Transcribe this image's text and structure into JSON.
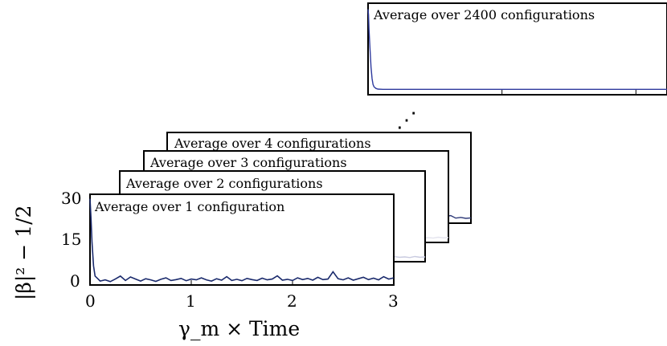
{
  "chart_data": {
    "type": "line",
    "xlabel": "γ_m × Time",
    "ylabel": "|β|² − 1/2",
    "xlim": [
      0,
      3
    ],
    "ylim": [
      0,
      30
    ],
    "x_ticks": [
      "0",
      "1",
      "2",
      "3"
    ],
    "y_ticks": [
      "0",
      "15",
      "30"
    ],
    "ellipsis": "⋰",
    "panels": [
      {
        "title": "Average over 1 configuration",
        "configurations": 1,
        "line_color": "#1a2a6c",
        "x": [
          0,
          0.01,
          0.02,
          0.035,
          0.05,
          0.08,
          0.1,
          0.15,
          0.2,
          0.25,
          0.3,
          0.35,
          0.4,
          0.45,
          0.5,
          0.55,
          0.6,
          0.65,
          0.7,
          0.75,
          0.8,
          0.85,
          0.9,
          0.95,
          1.0,
          1.05,
          1.1,
          1.15,
          1.2,
          1.25,
          1.3,
          1.35,
          1.4,
          1.45,
          1.5,
          1.55,
          1.6,
          1.65,
          1.7,
          1.75,
          1.8,
          1.85,
          1.9,
          1.95,
          2.0,
          2.05,
          2.1,
          2.15,
          2.2,
          2.25,
          2.3,
          2.35,
          2.4,
          2.45,
          2.5,
          2.55,
          2.6,
          2.65,
          2.7,
          2.75,
          2.8,
          2.85,
          2.9,
          2.95,
          3.0
        ],
        "y": [
          29,
          22,
          14,
          6,
          2.5,
          1.5,
          0.8,
          1.2,
          0.6,
          1.5,
          2.5,
          1,
          2.2,
          1.5,
          0.8,
          1.6,
          1.2,
          0.7,
          1.4,
          1.9,
          1,
          1.3,
          1.7,
          0.9,
          1.5,
          1.2,
          1.9,
          1.2,
          0.8,
          1.6,
          1.1,
          2.3,
          1,
          1.4,
          0.9,
          1.7,
          1.3,
          1,
          1.8,
          1.2,
          1.5,
          2.6,
          1.1,
          1.4,
          1,
          1.9,
          1.3,
          1.7,
          1.1,
          2.1,
          1.3,
          1.5,
          4,
          1.6,
          1.2,
          1.9,
          1.1,
          1.6,
          2.1,
          1.3,
          1.8,
          1.2,
          2.3,
          1.5,
          1.9
        ]
      },
      {
        "title": "Average over 2 configurations",
        "configurations": 2,
        "line_color": "#c9cbe0",
        "x": [
          0,
          0.01,
          0.02,
          0.035,
          0.05,
          0.08,
          0.1,
          0.15,
          0.2,
          0.25,
          0.3,
          0.35,
          0.4,
          0.45,
          0.5,
          0.55,
          0.6,
          0.65,
          0.7,
          0.75,
          0.8,
          0.85,
          0.9,
          0.95,
          1.0,
          1.05,
          1.1,
          1.15,
          1.2,
          1.25,
          1.3,
          1.35,
          1.4,
          1.45,
          1.5,
          1.55,
          1.6,
          1.65,
          1.7,
          1.75,
          1.8,
          1.85,
          1.9,
          1.95,
          2.0,
          2.05,
          2.1,
          2.15,
          2.2,
          2.25,
          2.3,
          2.35,
          2.4,
          2.45,
          2.5,
          2.55,
          2.6,
          2.65,
          2.7,
          2.75,
          2.8,
          2.85,
          2.9,
          2.95,
          3.0
        ],
        "y": [
          29,
          21,
          13,
          5,
          2,
          1.2,
          1,
          1.3,
          1,
          1.4,
          1.8,
          1.1,
          1.6,
          1.3,
          1,
          1.4,
          1.2,
          1,
          1.3,
          1.5,
          1.1,
          1.2,
          1.4,
          1,
          1.3,
          1.2,
          1.5,
          1.1,
          1,
          1.3,
          1.2,
          1.6,
          1.1,
          1.3,
          1,
          1.4,
          1.2,
          1.1,
          1.4,
          1.2,
          1.3,
          1.8,
          1.1,
          1.3,
          1.1,
          1.5,
          1.2,
          1.4,
          1.1,
          1.6,
          1.2,
          1.3,
          2.6,
          1.4,
          1.2,
          1.5,
          1.1,
          1.4,
          1.6,
          1.3,
          1.5,
          1.2,
          1.7,
          1.3,
          1.5
        ]
      },
      {
        "title": "Average over 3 configurations",
        "configurations": 3,
        "line_color": "#e4e4ee",
        "x": [
          0,
          0.01,
          0.02,
          0.035,
          0.05,
          0.08,
          0.1,
          0.15,
          0.2,
          0.25,
          0.3,
          0.35,
          0.4,
          0.45,
          0.5,
          0.55,
          0.6,
          0.65,
          0.7,
          0.75,
          0.8,
          0.85,
          0.9,
          0.95,
          1.0,
          1.05,
          1.1,
          1.15,
          1.2,
          1.25,
          1.3,
          1.35,
          1.4,
          1.45,
          1.5,
          1.55,
          1.6,
          1.65,
          1.7,
          1.75,
          1.8,
          1.85,
          1.9,
          1.95,
          2.0,
          2.05,
          2.1,
          2.15,
          2.2,
          2.25,
          2.3,
          2.35,
          2.4,
          2.45,
          2.5,
          2.55,
          2.6,
          2.65,
          2.7,
          2.75,
          2.8,
          2.85,
          2.9,
          2.95,
          3.0
        ],
        "y": [
          29,
          21,
          13,
          5,
          2,
          1.2,
          1,
          1.2,
          1,
          1.2,
          1.5,
          1.1,
          1.4,
          1.2,
          1,
          1.3,
          1.2,
          1,
          1.2,
          1.4,
          1.1,
          1.2,
          1.3,
          1,
          1.2,
          1.2,
          1.4,
          1.1,
          1,
          1.2,
          1.1,
          1.5,
          1.1,
          1.2,
          1,
          1.3,
          1.2,
          1.1,
          1.3,
          1.2,
          1.3,
          1.6,
          1.1,
          1.2,
          1.1,
          1.4,
          1.2,
          1.3,
          1.1,
          1.4,
          1.2,
          1.3,
          2.2,
          1.3,
          1.2,
          1.4,
          1.1,
          1.3,
          1.5,
          1.2,
          1.4,
          1.2,
          1.6,
          1.3,
          1.4
        ]
      },
      {
        "title": "Average over 4 configurations",
        "configurations": 4,
        "line_color": "#2e3a78",
        "x": [
          2.45,
          2.55,
          2.65,
          2.7,
          2.75,
          2.8,
          2.85,
          2.9,
          2.95,
          3.0
        ],
        "y": [
          1.6,
          1.8,
          1.4,
          1.7,
          2.2,
          2.6,
          1.5,
          1.8,
          1.4,
          1.6
        ]
      },
      {
        "title": "Average over 2400 configurations",
        "configurations": 2400,
        "line_color": "#2e3a9e",
        "x": [
          0,
          0.005,
          0.01,
          0.02,
          0.03,
          0.04,
          0.05,
          0.06,
          0.08,
          0.1,
          0.15,
          0.3,
          0.6,
          1.0,
          1.5,
          2.0,
          2.5,
          3.0
        ],
        "y": [
          29,
          27,
          22,
          15,
          9,
          5,
          3,
          2.2,
          1.6,
          1.4,
          1.3,
          1.3,
          1.3,
          1.3,
          1.3,
          1.3,
          1.3,
          1.3
        ]
      }
    ]
  }
}
